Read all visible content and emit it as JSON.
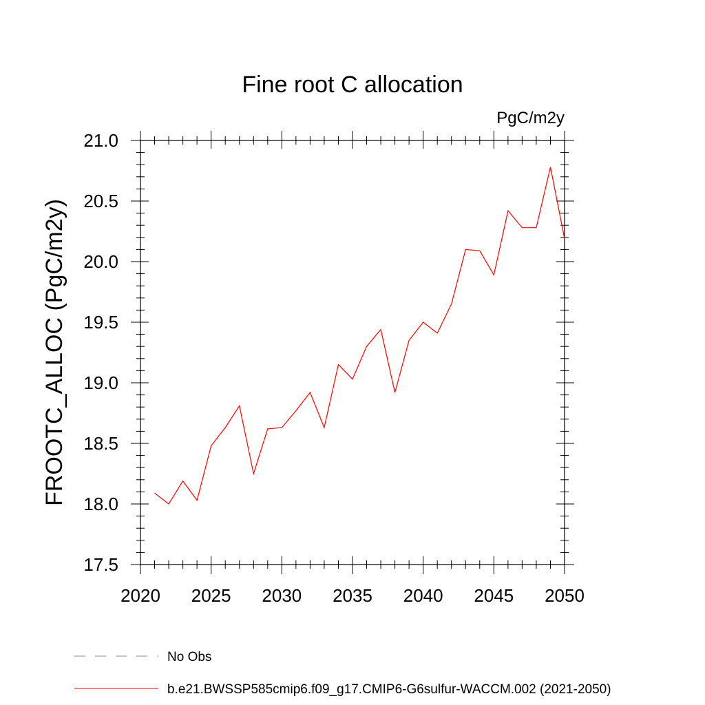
{
  "chart_data": {
    "type": "line",
    "title": "Fine root C allocation",
    "units_label": "PgC/m2y",
    "xlabel": "",
    "ylabel": "FROOTC_ALLOC  (PgC/m2y)",
    "xlim": [
      2020,
      2050
    ],
    "ylim": [
      17.5,
      21.0
    ],
    "x_ticks": [
      2020,
      2025,
      2030,
      2035,
      2040,
      2045,
      2050
    ],
    "y_ticks": [
      "17.5",
      "18.0",
      "18.5",
      "19.0",
      "19.5",
      "20.0",
      "20.5",
      "21.0"
    ],
    "grid": false,
    "legend_position": "bottom",
    "series": [
      {
        "name": "b.e21.BWSSP585cmip6.f09_g17.CMIP6-G6sulfur-WACCM.002 (2021-2050)",
        "color": "#ff0000",
        "style": "solid",
        "x": [
          2021,
          2022,
          2023,
          2024,
          2025,
          2026,
          2027,
          2028,
          2029,
          2030,
          2031,
          2032,
          2033,
          2034,
          2035,
          2036,
          2037,
          2038,
          2039,
          2040,
          2041,
          2042,
          2043,
          2044,
          2045,
          2046,
          2047,
          2048,
          2049,
          2050
        ],
        "y": [
          18.09,
          18.0,
          18.19,
          18.03,
          18.48,
          18.63,
          18.81,
          18.25,
          18.62,
          18.63,
          18.77,
          18.92,
          18.63,
          19.15,
          19.03,
          19.3,
          19.44,
          18.92,
          19.35,
          19.5,
          19.41,
          19.65,
          20.1,
          20.09,
          19.89,
          20.42,
          20.28,
          20.28,
          20.78,
          20.19
        ]
      }
    ],
    "legend": [
      {
        "label": "No Obs",
        "color": "#8080c0",
        "style": "dashed"
      },
      {
        "label": "b.e21.BWSSP585cmip6.f09_g17.CMIP6-G6sulfur-WACCM.002 (2021-2050)",
        "color": "#ff0000",
        "style": "solid"
      }
    ]
  }
}
